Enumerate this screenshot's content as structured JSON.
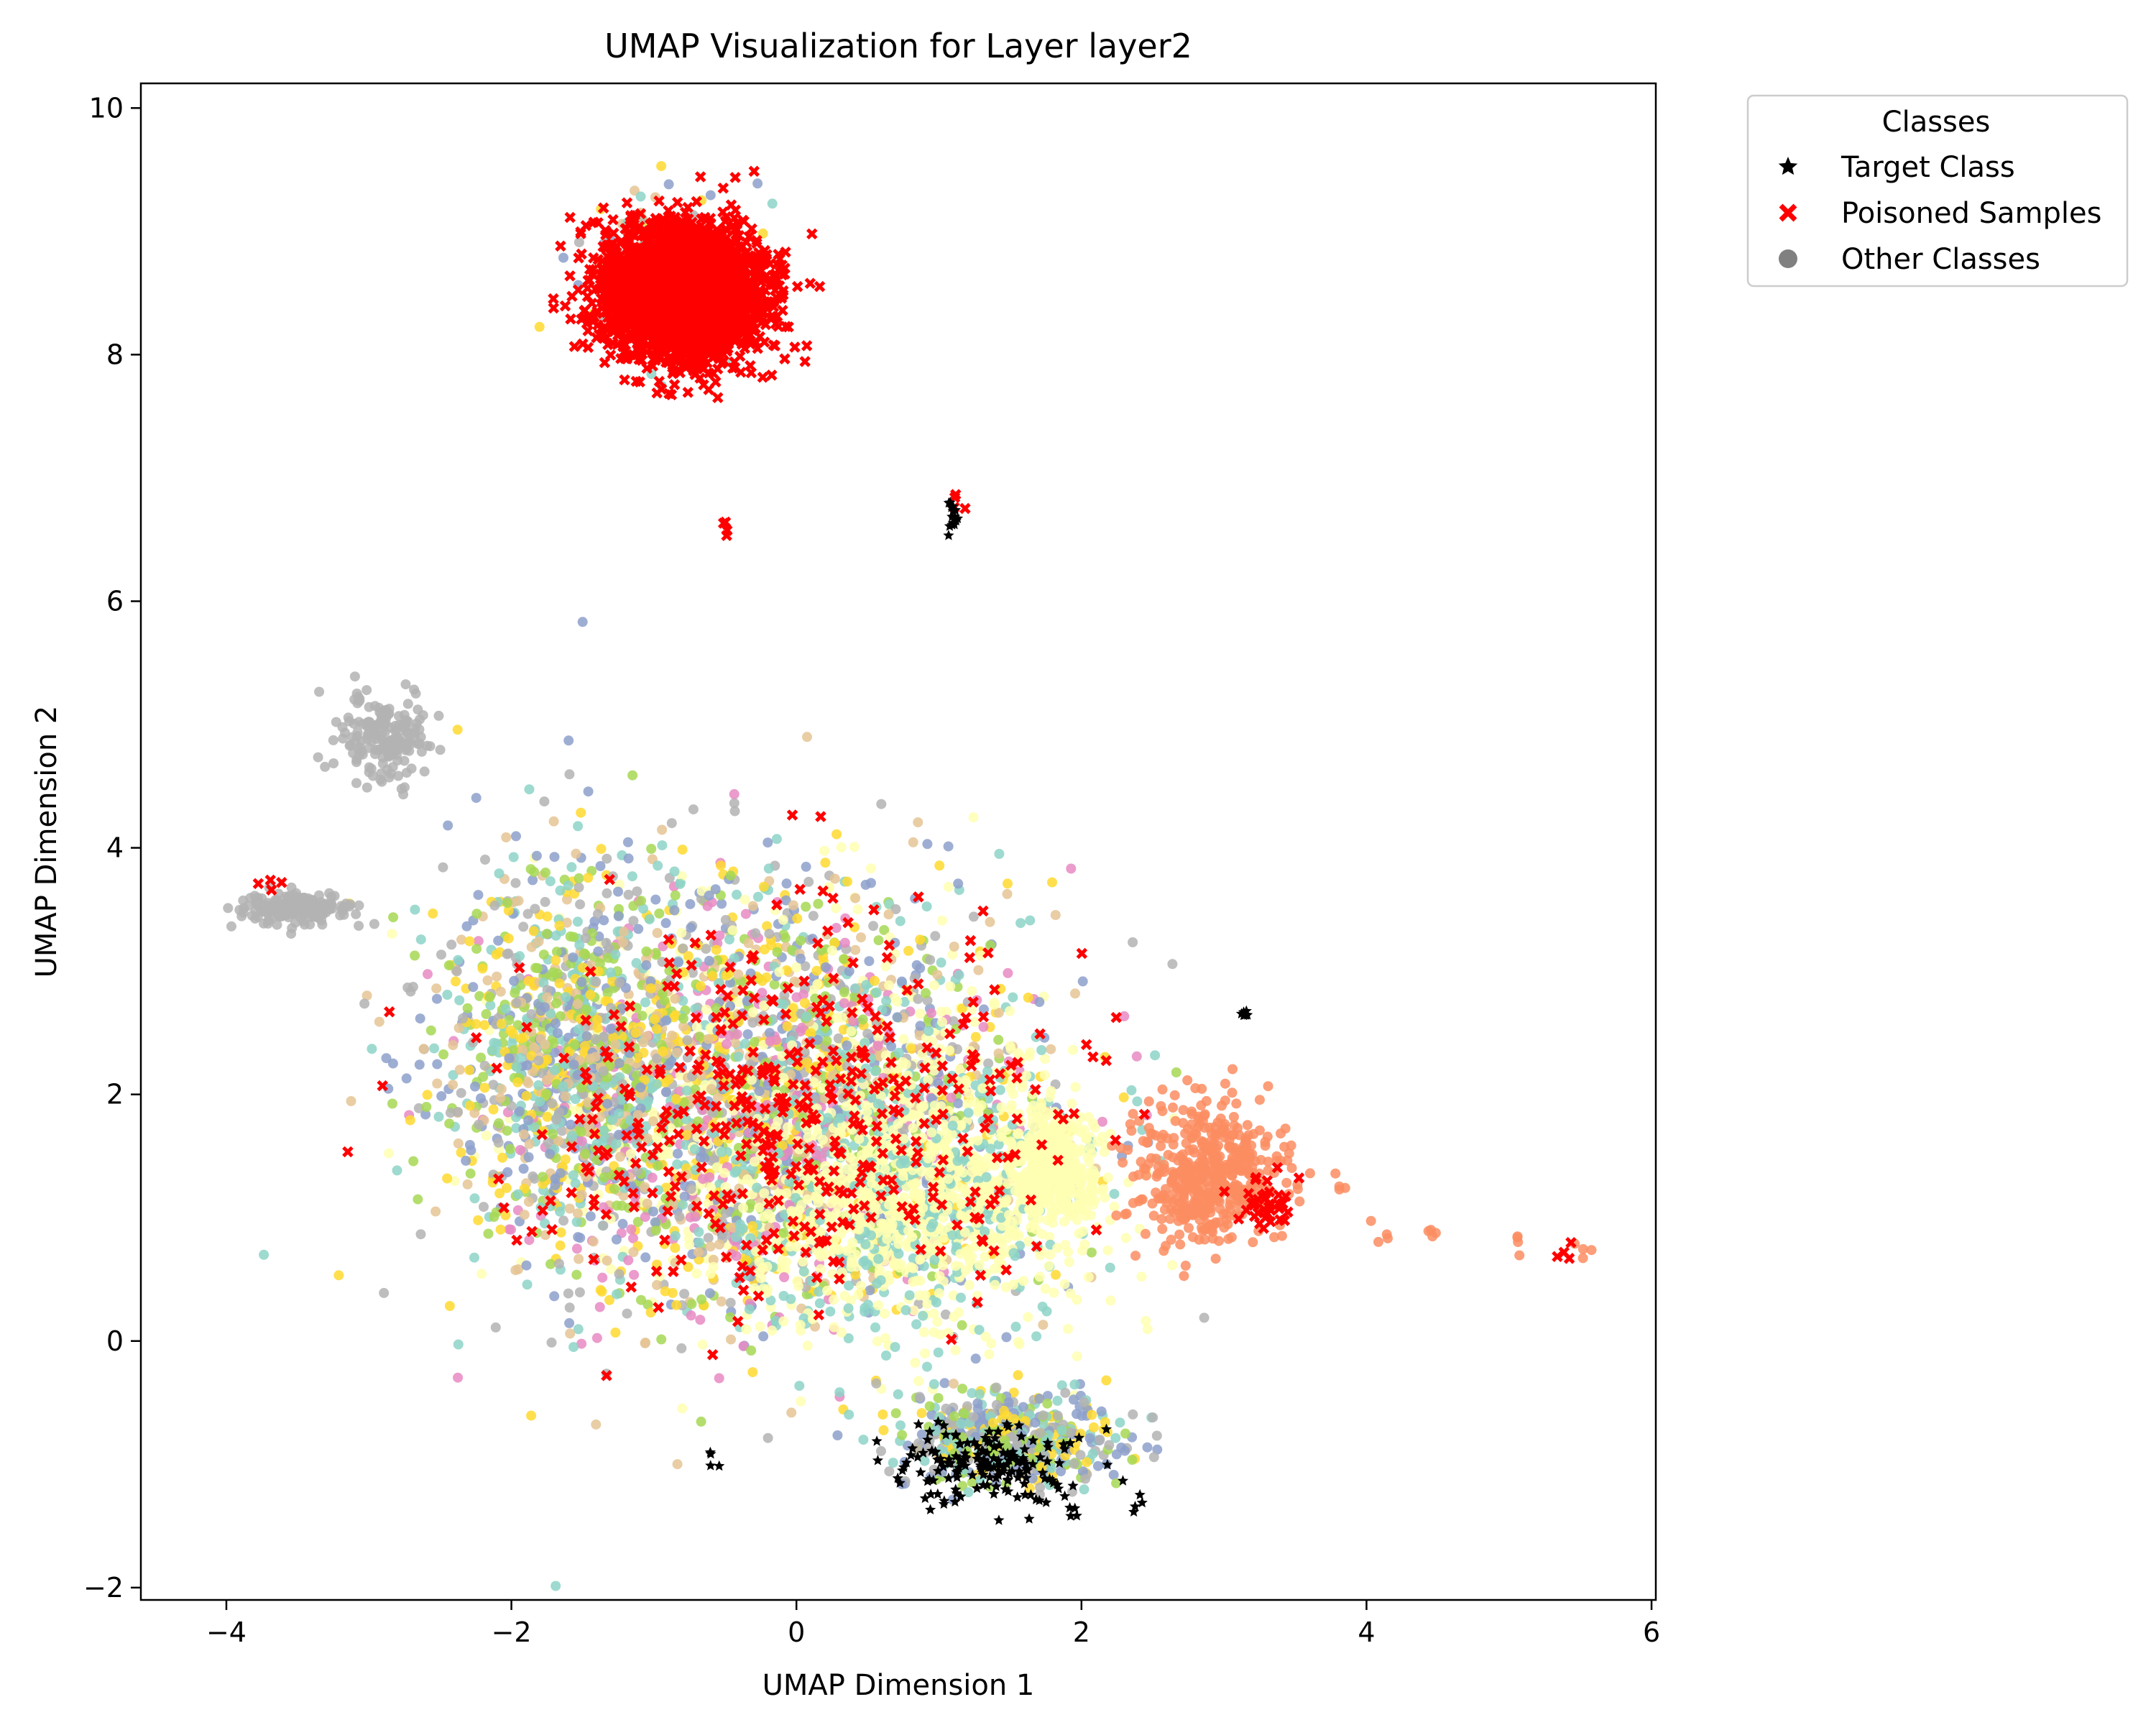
{
  "chart_data": {
    "type": "scatter",
    "title": "UMAP Visualization for Layer layer2",
    "xlabel": "UMAP Dimension 1",
    "ylabel": "UMAP Dimension 2",
    "xlim": [
      -4.6,
      6.03
    ],
    "ylim": [
      -2.1,
      10.2
    ],
    "x_ticks": [
      -4,
      -2,
      0,
      2,
      4,
      6
    ],
    "y_ticks": [
      -2,
      0,
      2,
      4,
      6,
      8,
      10
    ],
    "x_tick_labels": [
      "−4",
      "−2",
      "0",
      "2",
      "4",
      "6"
    ],
    "y_tick_labels": [
      "−2",
      "0",
      "2",
      "4",
      "6",
      "8",
      "10"
    ],
    "grid": false,
    "legend": {
      "title": "Classes",
      "placement": "outside-upper-right",
      "entries": [
        {
          "label": "Target Class",
          "marker": "star",
          "color": "#000000"
        },
        {
          "label": "Poisoned Samples",
          "marker": "x",
          "color": "#ff0000"
        },
        {
          "label": "Other Classes",
          "marker": "circle",
          "color": "#808080"
        }
      ]
    },
    "series": [
      {
        "name": "Other Classes",
        "marker": "circle",
        "palette": [
          "#ffffb3",
          "#8dd3c7",
          "#b3b3b3",
          "#e5c494",
          "#8da0cb",
          "#a6d854",
          "#ffd92f",
          "#e78ac3",
          "#fc8d62"
        ],
        "clusters": [
          {
            "center": [
              -0.2,
              1.9
            ],
            "spread": [
              1.5,
              1.45
            ],
            "count": 2600,
            "colors": [
              0,
              1,
              2,
              3,
              4,
              5,
              6,
              7
            ]
          },
          {
            "center": [
              -1.6,
              2.4
            ],
            "spread": [
              0.75,
              1.2
            ],
            "count": 900,
            "colors": [
              2,
              3,
              4,
              5,
              6,
              1
            ]
          },
          {
            "center": [
              0.9,
              1.2
            ],
            "spread": [
              1.0,
              0.9
            ],
            "count": 1200,
            "colors": [
              0,
              0,
              1,
              0
            ]
          },
          {
            "center": [
              1.8,
              1.4
            ],
            "spread": [
              0.25,
              0.35
            ],
            "count": 350,
            "colors": [
              0
            ]
          },
          {
            "center": [
              1.5,
              -0.8
            ],
            "spread": [
              0.65,
              0.3
            ],
            "count": 500,
            "colors": [
              4,
              1,
              5,
              6,
              2
            ]
          },
          {
            "center": [
              2.9,
              1.35
            ],
            "spread": [
              0.4,
              0.45
            ],
            "count": 500,
            "colors": [
              8
            ]
          },
          {
            "center": [
              -2.9,
              4.9
            ],
            "spread": [
              0.25,
              0.3
            ],
            "count": 180,
            "colors": [
              2
            ]
          },
          {
            "center": [
              -3.5,
              3.5
            ],
            "spread": [
              0.35,
              0.1
            ],
            "count": 170,
            "colors": [
              2
            ]
          },
          {
            "center": [
              -0.9,
              8.7
            ],
            "spread": [
              0.45,
              0.5
            ],
            "count": 160,
            "colors": [
              2,
              3,
              4,
              1,
              6
            ]
          }
        ],
        "trail": [
          [
            3.8,
            1.3
          ],
          [
            4.1,
            0.9
          ],
          [
            4.5,
            0.9
          ],
          [
            5.1,
            0.8
          ],
          [
            5.5,
            0.7
          ]
        ]
      },
      {
        "name": "Poisoned Samples",
        "marker": "x",
        "color": "#ff0000",
        "clusters": [
          {
            "center": [
              -0.8,
              8.5
            ],
            "spread": [
              0.45,
              0.42
            ],
            "count": 3200
          },
          {
            "center": [
              0.1,
              1.8
            ],
            "spread": [
              1.55,
              1.2
            ],
            "count": 420
          },
          {
            "center": [
              3.3,
              1.1
            ],
            "spread": [
              0.15,
              0.2
            ],
            "count": 40
          }
        ],
        "trail": [
          [
            1.1,
            6.8
          ],
          [
            5.4,
            0.75
          ],
          [
            -3.7,
            3.7
          ],
          [
            -0.5,
            6.6
          ]
        ]
      },
      {
        "name": "Target Class",
        "marker": "star",
        "color": "#000000",
        "clusters": [
          {
            "center": [
              1.4,
              -1.0
            ],
            "spread": [
              0.55,
              0.25
            ],
            "count": 170
          },
          {
            "center": [
              1.1,
              6.7
            ],
            "spread": [
              0.03,
              0.1
            ],
            "count": 18
          },
          {
            "center": [
              3.15,
              2.65
            ],
            "spread": [
              0.03,
              0.02
            ],
            "count": 8
          }
        ],
        "trail": [
          [
            2.4,
            -1.35
          ],
          [
            1.95,
            -1.42
          ],
          [
            -0.6,
            -0.9
          ]
        ]
      }
    ]
  }
}
